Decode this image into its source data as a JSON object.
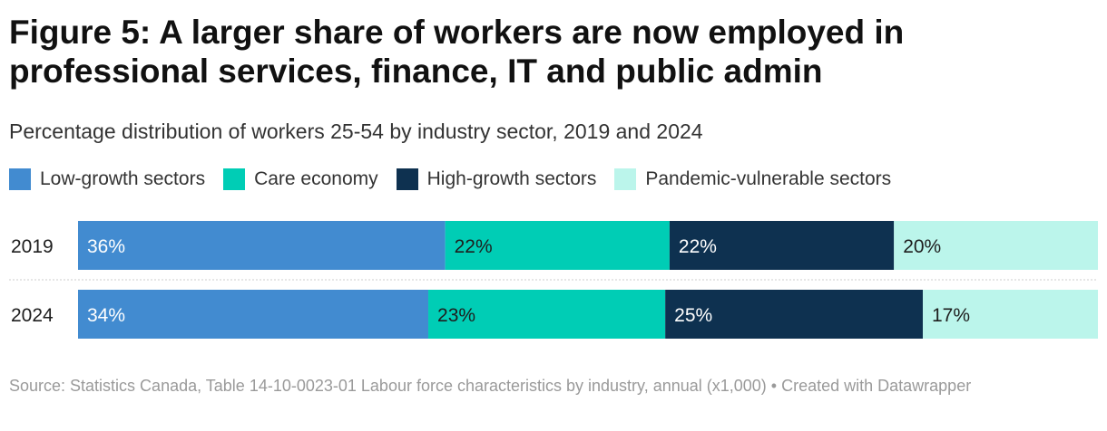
{
  "header": {
    "title": "Figure 5: A larger share of workers are now employed in professional services, finance, IT and public admin",
    "subtitle": "Percentage distribution of workers 25-54 by industry sector, 2019 and 2024"
  },
  "footer": {
    "source": "Source: Statistics Canada, Table 14-10-0023-01  Labour force characteristics by industry, annual (x1,000) • Created with Datawrapper"
  },
  "chart_data": {
    "type": "bar",
    "orientation": "horizontal",
    "stacked": true,
    "title": "Figure 5: A larger share of workers are now employed in professional services, finance, IT and public admin",
    "subtitle": "Percentage distribution of workers 25-54 by industry sector, 2019 and 2024",
    "categories": [
      "2019",
      "2024"
    ],
    "legend_position": "top-left",
    "series": [
      {
        "name": "Low-growth sectors",
        "color": "#428bd0",
        "label_color": "#ffffff",
        "values": [
          36,
          34
        ],
        "labels": [
          "36%",
          "34%"
        ]
      },
      {
        "name": "Care economy",
        "color": "#00cdb5",
        "label_color": "#1e1e1e",
        "values": [
          22,
          23
        ],
        "labels": [
          "22%",
          "23%"
        ]
      },
      {
        "name": "High-growth sectors",
        "color": "#0e3150",
        "label_color": "#ffffff",
        "values": [
          22,
          25
        ],
        "labels": [
          "22%",
          "25%"
        ]
      },
      {
        "name": "Pandemic-vulnerable sectors",
        "color": "#bbf5eb",
        "label_color": "#1e1e1e",
        "values": [
          20,
          17
        ],
        "labels": [
          "20%",
          "17%"
        ]
      }
    ]
  }
}
